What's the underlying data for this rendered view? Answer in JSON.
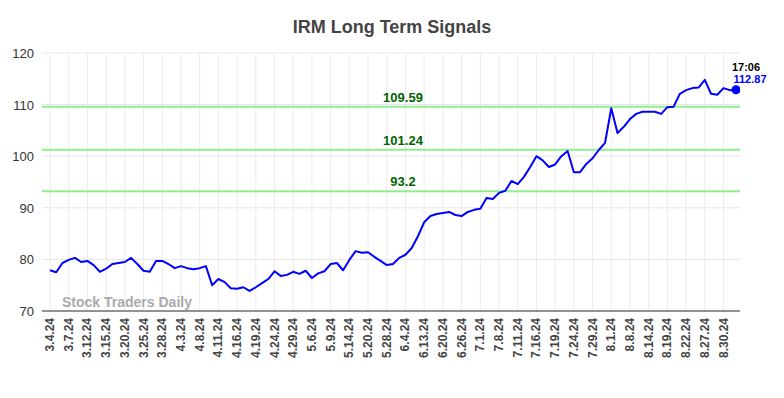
{
  "chart_data": {
    "type": "line",
    "title": "IRM Long Term Signals",
    "x": [
      "3.4.24",
      null,
      null,
      "3.7.24",
      null,
      null,
      "3.12.24",
      null,
      null,
      "3.15.24",
      null,
      null,
      "3.20.24",
      null,
      null,
      "3.25.24",
      null,
      null,
      "3.28.24",
      null,
      null,
      "4.3.24",
      null,
      null,
      "4.8.24",
      null,
      null,
      "4.11.24",
      null,
      null,
      "4.16.24",
      null,
      null,
      "4.19.24",
      null,
      null,
      "4.24.24",
      null,
      null,
      "4.29.24",
      null,
      null,
      "5.6.24",
      null,
      null,
      "5.9.24",
      null,
      null,
      "5.14.24",
      null,
      null,
      "5.20.24",
      null,
      null,
      "5.28.24",
      null,
      null,
      "6.4.24",
      null,
      null,
      "6.13.24",
      null,
      null,
      "6.20.24",
      null,
      null,
      "6.26.24",
      null,
      null,
      "7.1.24",
      null,
      null,
      "7.8.24",
      null,
      null,
      "7.11.24",
      null,
      null,
      "7.16.24",
      null,
      null,
      "7.19.24",
      null,
      null,
      "7.24.24",
      null,
      null,
      "7.29.24",
      null,
      null,
      "8.1.24",
      null,
      null,
      "8.8.24",
      null,
      null,
      "8.14.24",
      null,
      null,
      "8.19.24",
      null,
      null,
      "8.22.24",
      null,
      null,
      "8.27.24",
      null,
      null,
      "8.30.24",
      null,
      null
    ],
    "values": [
      77.9,
      77.5,
      79.3,
      79.9,
      80.3,
      79.5,
      79.7,
      78.9,
      77.6,
      78.2,
      79.1,
      79.3,
      79.5,
      80.3,
      79.1,
      77.8,
      77.6,
      79.7,
      79.7,
      79.1,
      78.3,
      78.7,
      78.3,
      78.1,
      78.3,
      78.7,
      75.0,
      76.2,
      75.6,
      74.4,
      74.3,
      74.6,
      73.9,
      74.6,
      75.4,
      76.2,
      77.7,
      76.8,
      77.0,
      77.6,
      77.2,
      77.8,
      76.4,
      77.3,
      77.7,
      79.1,
      79.3,
      77.9,
      79.9,
      81.6,
      81.3,
      81.4,
      80.5,
      79.7,
      78.9,
      79.1,
      80.3,
      80.9,
      82.2,
      84.5,
      87.2,
      88.4,
      88.8,
      89.0,
      89.2,
      88.6,
      88.4,
      89.2,
      89.6,
      89.8,
      91.9,
      91.7,
      92.9,
      93.3,
      95.2,
      94.6,
      96.0,
      97.9,
      100.0,
      99.2,
      97.9,
      98.4,
      100.0,
      101.0,
      96.9,
      96.9,
      98.5,
      99.6,
      101.2,
      102.6,
      109.3,
      104.5,
      105.7,
      107.2,
      108.2,
      108.6,
      108.6,
      108.6,
      108.2,
      109.5,
      109.6,
      112.1,
      112.8,
      113.2,
      113.3,
      114.8,
      112.1,
      111.9,
      113.2,
      112.8,
      112.87
    ],
    "color": "#0000ff",
    "ylim": [
      70,
      120
    ],
    "yticks": [
      70,
      80,
      90,
      100,
      110,
      120
    ],
    "grid": true,
    "signals": [
      109.59,
      101.24,
      93.2
    ],
    "annotations": {
      "time": "17:06"
    },
    "watermark": "Stock Traders Daily"
  }
}
